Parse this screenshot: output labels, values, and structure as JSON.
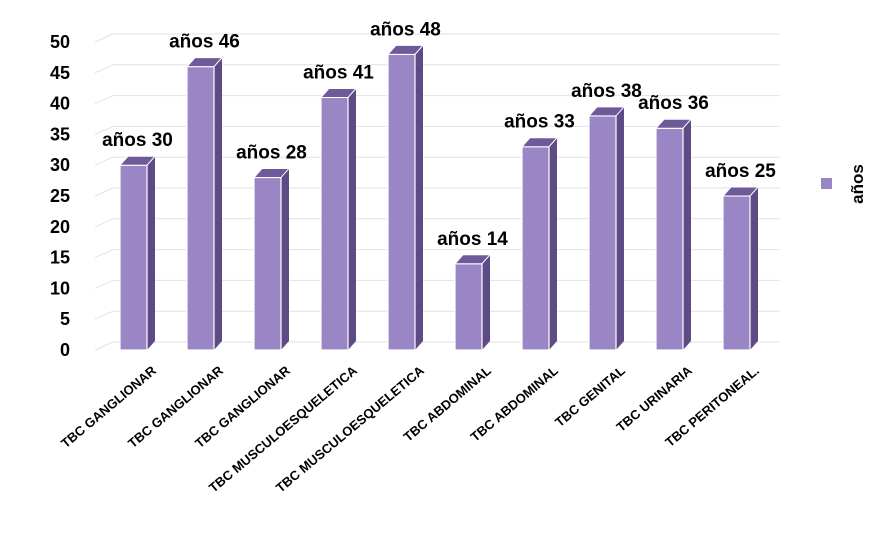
{
  "chart_data": {
    "type": "bar",
    "categories": [
      "TBC GANGLIONAR",
      "TBC GANGLIONAR",
      "TBC GANGLIONAR",
      "TBC MUSCULOESQUELETICA",
      "TBC MUSCULOESQUELETICA",
      "TBC ABDOMINAL",
      "TBC ABDOMINAL",
      "TBC GENITAL",
      "TBC URINARIA",
      "TBC PERITONEAL."
    ],
    "series": [
      {
        "name": "años",
        "values": [
          30,
          46,
          28,
          41,
          48,
          14,
          33,
          38,
          36,
          25
        ]
      }
    ],
    "data_labels": [
      "años 30",
      "años 46",
      "años 28",
      "años 41",
      "años 48",
      "años 14",
      "años 33",
      "años 38",
      "años 36",
      "años 25"
    ],
    "y_ticks": [
      "0",
      "5",
      "10",
      "15",
      "20",
      "25",
      "30",
      "35",
      "40",
      "45",
      "50"
    ],
    "ylim": [
      0,
      50
    ],
    "title": "",
    "xlabel": "",
    "ylabel": "",
    "legend_position": "right",
    "style": "3d-column",
    "grid": true,
    "colors": {
      "bar_front": "#9b86c5",
      "bar_side": "#5e4b86",
      "bar_top": "#6f5a99",
      "grid": "#e2e2e2"
    }
  }
}
